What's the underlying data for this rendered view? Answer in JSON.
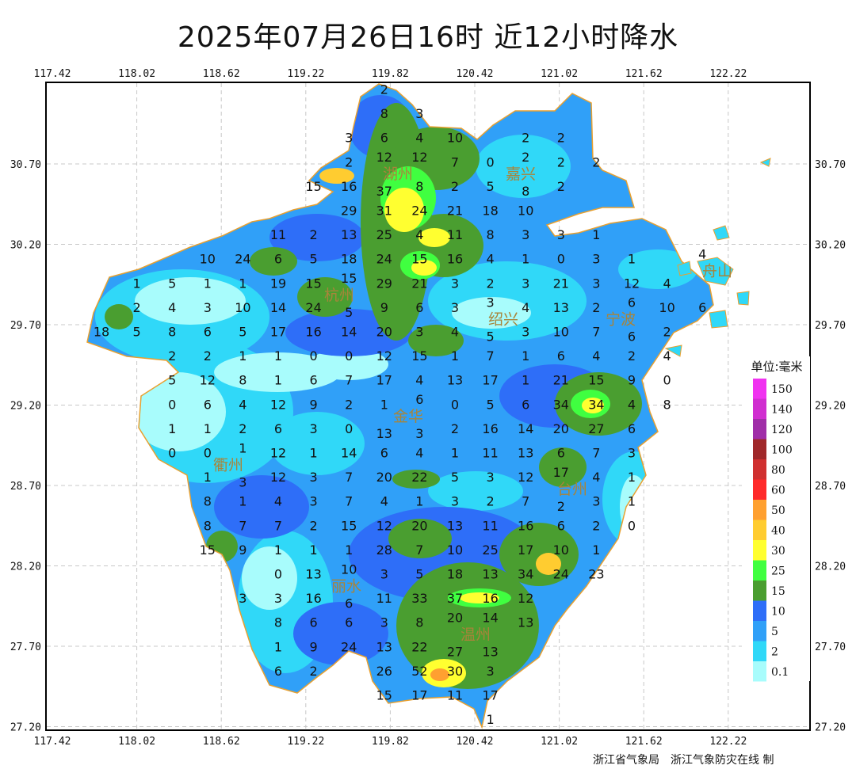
{
  "title": "2025年07月26日16时  近12小时降水",
  "axes": {
    "lon_ticks": [
      "117.42",
      "118.02",
      "118.62",
      "119.22",
      "119.82",
      "120.42",
      "121.02",
      "121.62",
      "122.22"
    ],
    "lat_ticks": [
      "30.70",
      "30.20",
      "29.70",
      "29.20",
      "28.70",
      "28.20",
      "27.70",
      "27.20"
    ]
  },
  "legend": {
    "title": "单位:毫米",
    "items": [
      {
        "label": "150",
        "color": "#f032f0"
      },
      {
        "label": "140",
        "color": "#d02ed0"
      },
      {
        "label": "120",
        "color": "#a02ea8"
      },
      {
        "label": "100",
        "color": "#a0282a"
      },
      {
        "label": "80",
        "color": "#d03030"
      },
      {
        "label": "60",
        "color": "#ff2a2a"
      },
      {
        "label": "50",
        "color": "#ffa030"
      },
      {
        "label": "40",
        "color": "#ffcc30"
      },
      {
        "label": "30",
        "color": "#ffff30"
      },
      {
        "label": "25",
        "color": "#40ff40"
      },
      {
        "label": "15",
        "color": "#4a9e30"
      },
      {
        "label": "10",
        "color": "#2e6ef8"
      },
      {
        "label": "5",
        "color": "#30a0f8"
      },
      {
        "label": "2",
        "color": "#30d8f8"
      },
      {
        "label": "0.1",
        "color": "#a8fcfc"
      }
    ]
  },
  "cities": [
    {
      "name": "湖州"
    },
    {
      "name": "嘉兴"
    },
    {
      "name": "杭州"
    },
    {
      "name": "绍兴"
    },
    {
      "name": "宁波"
    },
    {
      "name": "舟山"
    },
    {
      "name": "金华"
    },
    {
      "name": "衢州"
    },
    {
      "name": "台州"
    },
    {
      "name": "丽水"
    },
    {
      "name": "温州"
    }
  ],
  "stations_grid": [
    [
      null,
      null,
      null,
      null,
      null,
      null,
      null,
      null,
      2,
      null,
      null,
      null,
      null,
      null,
      null,
      null,
      null,
      null
    ],
    [
      null,
      null,
      null,
      null,
      null,
      null,
      null,
      null,
      8,
      3,
      null,
      null,
      null,
      null,
      null,
      null,
      null,
      null
    ],
    [
      null,
      null,
      null,
      null,
      null,
      null,
      null,
      3,
      6,
      4,
      10,
      null,
      2,
      2,
      null,
      null,
      null,
      null
    ],
    [
      null,
      null,
      null,
      null,
      null,
      null,
      null,
      2,
      12,
      12,
      7,
      0,
      2,
      2,
      2,
      null,
      null,
      null
    ],
    [
      null,
      null,
      null,
      null,
      null,
      null,
      15,
      16,
      37,
      8,
      2,
      5,
      8,
      2,
      null,
      null,
      null,
      null
    ],
    [
      null,
      null,
      null,
      null,
      null,
      null,
      null,
      29,
      31,
      24,
      21,
      18,
      10,
      null,
      null,
      null,
      null,
      null
    ],
    [
      null,
      null,
      null,
      null,
      null,
      11,
      2,
      13,
      25,
      4,
      11,
      8,
      3,
      3,
      1,
      null,
      null,
      null
    ],
    [
      null,
      null,
      null,
      10,
      24,
      6,
      5,
      18,
      24,
      15,
      16,
      4,
      1,
      0,
      3,
      1,
      null,
      4
    ],
    [
      null,
      1,
      5,
      1,
      1,
      19,
      15,
      15,
      29,
      21,
      3,
      2,
      3,
      21,
      3,
      12,
      4,
      null
    ],
    [
      null,
      2,
      4,
      3,
      10,
      14,
      24,
      5,
      9,
      6,
      3,
      3,
      4,
      13,
      2,
      6,
      10,
      6
    ],
    [
      18,
      5,
      8,
      6,
      5,
      17,
      16,
      14,
      20,
      3,
      4,
      5,
      3,
      10,
      7,
      6,
      2,
      null
    ],
    [
      null,
      null,
      2,
      2,
      1,
      1,
      0,
      0,
      12,
      15,
      1,
      7,
      1,
      6,
      4,
      2,
      4,
      null
    ],
    [
      null,
      null,
      5,
      12,
      8,
      1,
      6,
      7,
      17,
      4,
      13,
      17,
      1,
      21,
      15,
      9,
      0,
      null
    ],
    [
      null,
      null,
      0,
      6,
      4,
      12,
      9,
      2,
      1,
      6,
      0,
      5,
      6,
      34,
      34,
      4,
      8,
      null
    ],
    [
      null,
      null,
      1,
      1,
      2,
      6,
      3,
      0,
      13,
      3,
      2,
      16,
      14,
      20,
      27,
      6,
      null,
      null
    ],
    [
      null,
      null,
      0,
      0,
      1,
      12,
      1,
      14,
      6,
      4,
      1,
      11,
      13,
      6,
      7,
      3,
      null,
      null
    ],
    [
      null,
      null,
      null,
      1,
      3,
      12,
      3,
      7,
      20,
      22,
      5,
      3,
      12,
      17,
      4,
      1,
      null,
      null
    ],
    [
      null,
      null,
      null,
      8,
      1,
      4,
      3,
      7,
      4,
      1,
      3,
      2,
      7,
      2,
      3,
      1,
      null,
      null
    ],
    [
      null,
      null,
      null,
      8,
      7,
      7,
      2,
      15,
      12,
      20,
      13,
      11,
      16,
      6,
      2,
      0,
      null,
      null
    ],
    [
      null,
      null,
      null,
      15,
      9,
      1,
      1,
      1,
      28,
      7,
      10,
      25,
      17,
      10,
      1,
      null,
      null,
      null
    ],
    [
      null,
      null,
      null,
      null,
      null,
      0,
      13,
      10,
      3,
      5,
      18,
      13,
      34,
      24,
      23,
      null,
      null,
      null
    ],
    [
      null,
      null,
      null,
      null,
      3,
      3,
      16,
      6,
      11,
      33,
      37,
      16,
      12,
      null,
      null,
      null,
      null,
      null
    ],
    [
      null,
      null,
      null,
      null,
      null,
      8,
      6,
      6,
      3,
      8,
      20,
      14,
      13,
      null,
      null,
      null,
      null,
      null
    ],
    [
      null,
      null,
      null,
      null,
      null,
      1,
      9,
      24,
      13,
      22,
      27,
      13,
      null,
      null,
      null,
      null,
      null,
      null
    ],
    [
      null,
      null,
      null,
      null,
      null,
      6,
      2,
      null,
      26,
      52,
      30,
      3,
      null,
      null,
      null,
      null,
      null,
      null
    ],
    [
      null,
      null,
      null,
      null,
      null,
      null,
      null,
      null,
      15,
      17,
      11,
      17,
      null,
      null,
      null,
      null,
      null,
      null
    ],
    [
      null,
      null,
      null,
      null,
      null,
      null,
      null,
      null,
      null,
      null,
      null,
      1,
      null,
      null,
      null,
      null,
      null,
      null
    ]
  ],
  "credits": [
    "浙江省气象局",
    "浙江气象防灾在线 制"
  ]
}
